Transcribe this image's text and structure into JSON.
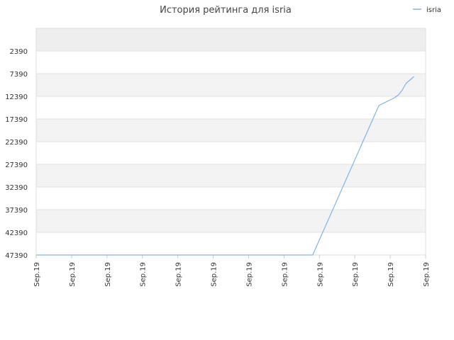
{
  "chart_data": {
    "type": "line",
    "title": "История рейтинга для isria",
    "xlabel": "",
    "ylabel": "",
    "legend": {
      "position": "top-right",
      "entries": [
        "isria"
      ]
    },
    "grid": true,
    "y_inverted": true,
    "ylim": [
      47390,
      -2610
    ],
    "y_ticks": [
      "2390",
      "7390",
      "12390",
      "17390",
      "22390",
      "27390",
      "32390",
      "37390",
      "42390",
      "47390"
    ],
    "x_ticks": [
      "Sep.19",
      "Sep.19",
      "Sep.19",
      "Sep.19",
      "Sep.19",
      "Sep.19",
      "Sep.19",
      "Sep.19",
      "Sep.19",
      "Sep.19",
      "Sep.19",
      "Sep.19"
    ],
    "series": [
      {
        "name": "isria",
        "color": "#7cb5ec",
        "x": [
          0,
          0.71,
          0.88,
          0.92,
          0.93,
          0.94,
          0.95,
          0.96,
          0.97
        ],
        "y": [
          47390,
          47390,
          14400,
          12700,
          12100,
          11000,
          9500,
          8800,
          8000
        ]
      }
    ]
  }
}
